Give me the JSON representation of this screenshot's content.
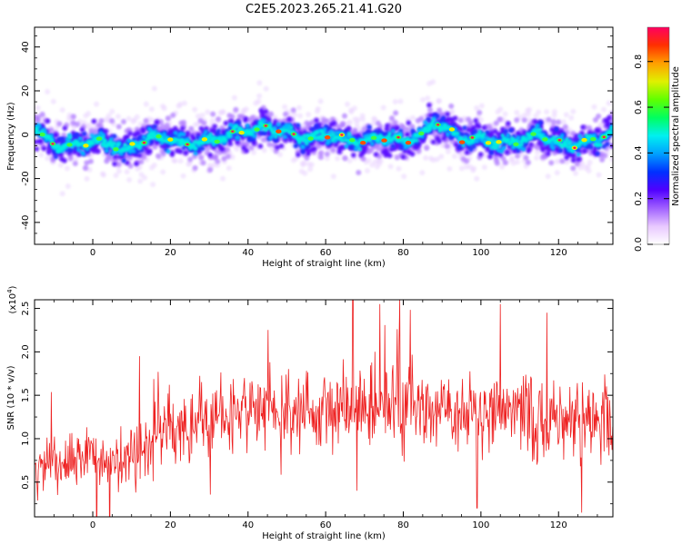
{
  "figure_title": "C2E5.2023.265.21.41.G20",
  "colors": {
    "snr_line": "#ee2222",
    "axes": "#000000",
    "colormap": [
      "#ffffff",
      "#e8c8ff",
      "#a060ff",
      "#5000ff",
      "#0030ff",
      "#00a0ff",
      "#00f0f0",
      "#00ff60",
      "#60ff00",
      "#e0f000",
      "#ffa000",
      "#ff3000",
      "#ff0060"
    ]
  },
  "chart_data": [
    {
      "type": "heatmap",
      "title": "",
      "xlabel": "Height of straight line (km)",
      "ylabel": "Frequency (Hz)",
      "xlim": [
        -15,
        134
      ],
      "ylim": [
        -50,
        49
      ],
      "xticks": [
        "0",
        "20",
        "40",
        "60",
        "80",
        "100",
        "120"
      ],
      "yticks": [
        "-40",
        "-20",
        "0",
        "20",
        "40"
      ],
      "colorbar": {
        "label": "Normalized spectral amplitude",
        "range": [
          0.0,
          0.95
        ],
        "ticks": [
          "0.0",
          "0.2",
          "0.4",
          "0.6",
          "0.8"
        ]
      },
      "ridge_center_hz": {
        "x": [
          -15,
          -10,
          -5,
          0,
          5,
          8,
          10,
          15,
          20,
          25,
          30,
          35,
          40,
          45,
          50,
          55,
          60,
          65,
          70,
          75,
          80,
          85,
          88,
          90,
          95,
          100,
          105,
          110,
          115,
          120,
          125,
          130,
          134
        ],
        "y": [
          3,
          -5,
          -5,
          -3,
          -4,
          -8,
          -5,
          -1,
          -2,
          -4,
          -3,
          0,
          2,
          3,
          1,
          -2,
          0,
          -2,
          -3,
          -1,
          -3,
          0,
          6,
          4,
          -2,
          -2,
          -4,
          -3,
          1,
          -4,
          -5,
          -2,
          2
        ]
      }
    },
    {
      "type": "line",
      "title": "",
      "xlabel": "Height of straight line (km)",
      "ylabel": "SNR (10 * v/v)",
      "y_multiplier_label": "(x10",
      "y_multiplier_exponent": "4",
      "y_multiplier_close": ")",
      "xlim": [
        -15,
        134
      ],
      "ylim": [
        0.1,
        2.6
      ],
      "xticks": [
        "0",
        "20",
        "40",
        "60",
        "80",
        "100",
        "120"
      ],
      "yticks": [
        "0.5",
        "1.0",
        "1.5",
        "2.0",
        "2.5"
      ],
      "series": [
        {
          "mean_profile": {
            "x": [
              -15,
              0,
              12,
              15,
              20,
              30,
              40,
              50,
              60,
              70,
              80,
              90,
              100,
              110,
              120,
              134
            ],
            "y": [
              0.65,
              0.8,
              0.85,
              1.05,
              1.15,
              1.25,
              1.3,
              1.3,
              1.35,
              1.4,
              1.35,
              1.35,
              1.3,
              1.3,
              1.25,
              1.25
            ]
          },
          "peaks": [
            {
              "x": 12,
              "y": 1.95
            },
            {
              "x": 67,
              "y": 2.6
            },
            {
              "x": 74,
              "y": 2.55
            },
            {
              "x": 79,
              "y": 2.6
            },
            {
              "x": 105,
              "y": 2.55
            },
            {
              "x": 117,
              "y": 2.45
            },
            {
              "x": 99,
              "y": 0.2
            },
            {
              "x": 68,
              "y": 0.4
            }
          ]
        }
      ]
    }
  ]
}
